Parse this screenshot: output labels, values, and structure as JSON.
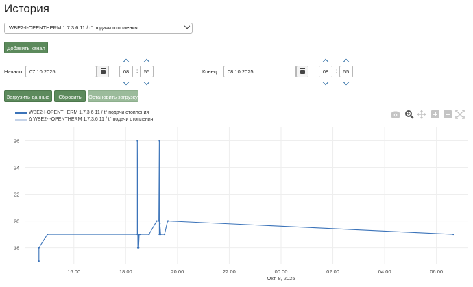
{
  "page": {
    "title": "История"
  },
  "channel_select": {
    "value": "WBE2-I-OPENTHERM 1.7.3.6 11 / t° подачи отопления"
  },
  "buttons": {
    "add_channel": "Добавить канал",
    "load": "Загрузить данные",
    "reset": "Сбросить",
    "stop": "Остановить загрузку"
  },
  "start": {
    "label": "Начало",
    "date": "07.10.2025",
    "hour": "08",
    "minute": "55"
  },
  "end": {
    "label": "Конец",
    "date": "08.10.2025",
    "hour": "08",
    "minute": "55"
  },
  "colors": {
    "accent_green": "#5c8a5c",
    "line_blue": "#3b73b9",
    "chevron_blue": "#2e6da4"
  },
  "legend": {
    "series": "WBE2-I-OPENTHERM 1.7.3.6 11 / t° подачи отопления",
    "delta": "Δ WBE2-I-OPENTHERM 1.7.3.6 11 / t° подачи отопления"
  },
  "modebar": [
    "camera-icon",
    "zoom-icon",
    "pan-icon",
    "zoom-in-icon",
    "zoom-out-icon",
    "autoscale-icon"
  ],
  "chart_data": {
    "type": "line",
    "x_tick_labels": [
      "16:00",
      "18:00",
      "20:00",
      "22:00",
      "00:00",
      "02:00",
      "04:00",
      "06:00"
    ],
    "x_tick_hours": [
      16,
      18,
      20,
      22,
      24,
      26,
      28,
      30
    ],
    "x_sublabel": "Окт. 8, 2025",
    "xlim_hours": [
      14.1,
      31.2
    ],
    "ylim": [
      16.8,
      27
    ],
    "y_ticks": [
      18,
      20,
      22,
      24,
      26
    ],
    "grid": true,
    "series": [
      {
        "name": "WBE2-I-OPENTHERM 1.7.3.6 11 / t° подачи отопления",
        "x_hours": [
          14.65,
          14.65,
          14.65,
          14.98,
          18.45,
          18.45,
          18.47,
          18.5,
          18.5,
          18.52,
          18.55,
          18.9,
          19.2,
          19.28,
          19.3,
          19.3,
          19.32,
          19.35,
          19.5,
          19.62,
          19.65,
          30.65
        ],
        "y": [
          17,
          18,
          18,
          19,
          19,
          26,
          18,
          19,
          18,
          19,
          19,
          19,
          20,
          20,
          26,
          19,
          19.8,
          19,
          19,
          20,
          20,
          19
        ]
      }
    ]
  }
}
